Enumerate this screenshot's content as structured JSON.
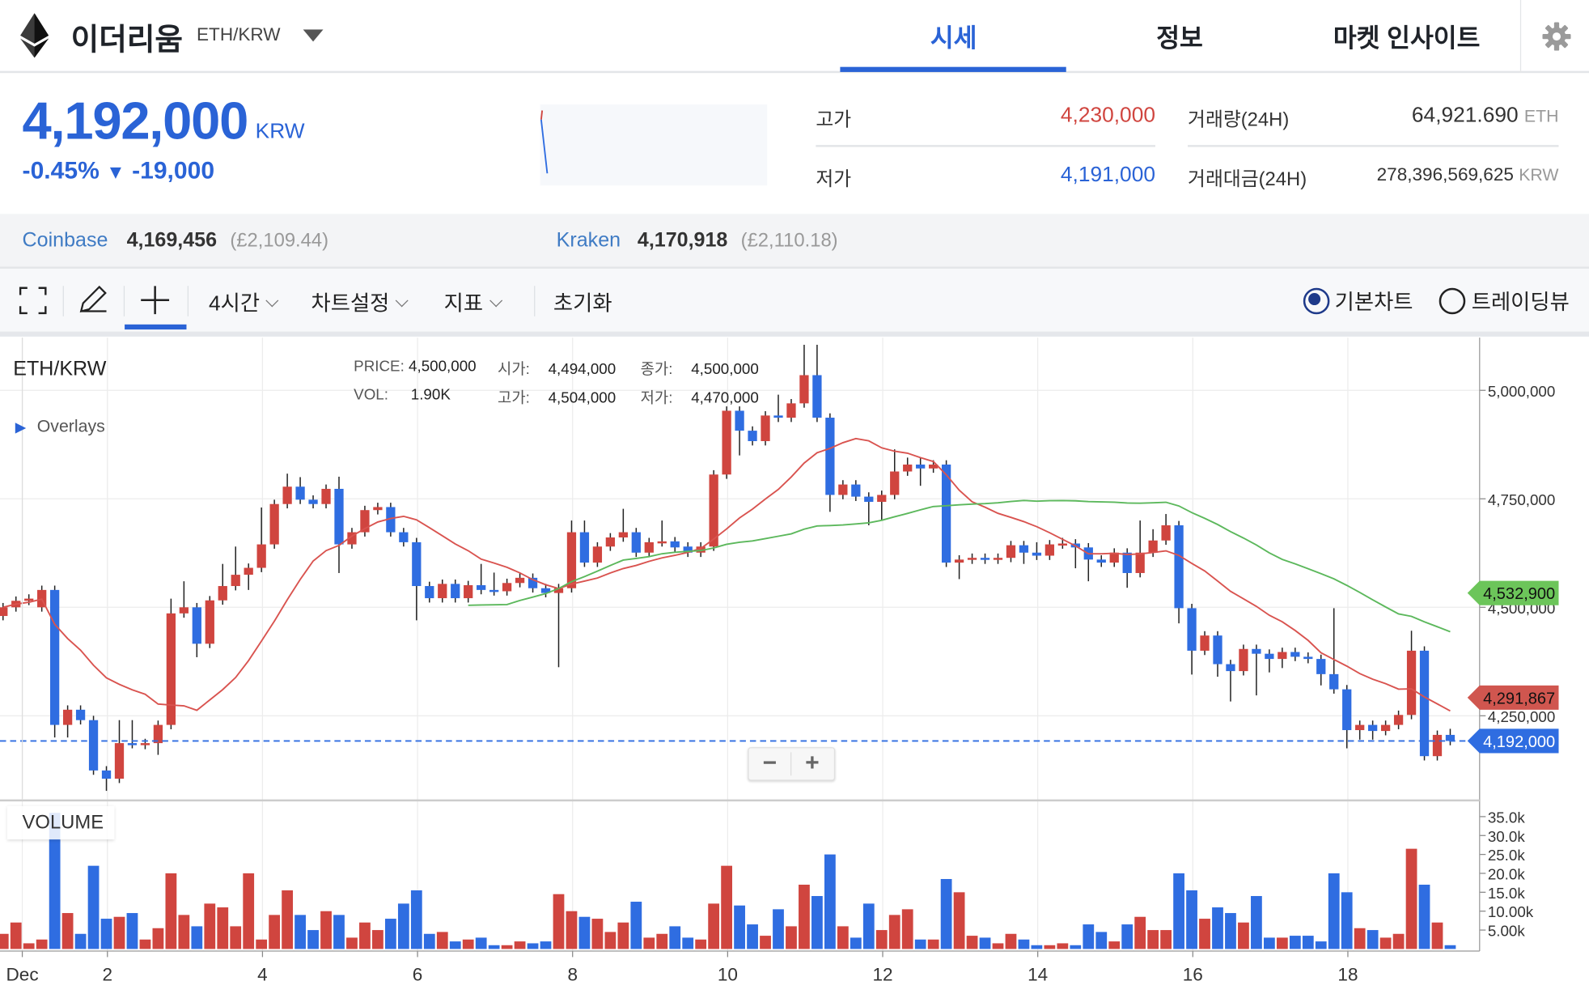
{
  "header": {
    "coin_name": "이더리움",
    "pair": "ETH/KRW",
    "tabs": [
      {
        "label": "시세",
        "active": true
      },
      {
        "label": "정보",
        "active": false
      },
      {
        "label": "마켓 인사이트",
        "active": false
      }
    ],
    "icons": {
      "logo": "ethereum-logo",
      "dropdown": "caret-down-icon",
      "settings": "gear-icon"
    }
  },
  "ticker": {
    "price": "4,192,000",
    "currency": "KRW",
    "change_pct": "-0.45%",
    "change_arrow": "▼",
    "change_abs": "-19,000",
    "high_label": "고가",
    "high_value": "4,230,000",
    "low_label": "저가",
    "low_value": "4,191,000",
    "volume_label": "거래량(24H)",
    "volume_value": "64,921.690",
    "volume_unit": "ETH",
    "turnover_label": "거래대금(24H)",
    "turnover_value": "278,396,569,625",
    "turnover_unit": "KRW"
  },
  "exchanges": [
    {
      "name": "Coinbase",
      "price": "4,169,456",
      "usd": "(£2,109.44)"
    },
    {
      "name": "Kraken",
      "price": "4,170,918",
      "usd": "(£2,110.18)"
    }
  ],
  "toolbar": {
    "interval": "4시간",
    "chart_settings": "차트설정",
    "indicators": "지표",
    "reset": "초기화",
    "basic_chart": "기본차트",
    "tradingview": "트레이딩뷰",
    "selected_chart": "기본차트",
    "icons": [
      "fullscreen-icon",
      "pencil-icon",
      "crosshair-icon"
    ]
  },
  "colors": {
    "accent": "#2a63d6",
    "up": "#d0453f",
    "down": "#2f6de1",
    "ma_short": "#d9534f",
    "ma_long": "#5cb85c"
  },
  "chart_data": {
    "type": "candlestick",
    "title": "ETH/KRW",
    "overlays_label": "Overlays",
    "volume_label": "VOLUME",
    "legend": {
      "price_label": "PRICE:",
      "price": "4,500,000",
      "open_label": "시가:",
      "open": "4,494,000",
      "close_label": "종가:",
      "close": "4,500,000",
      "vol_label": "VOL:",
      "vol": "1.90K",
      "high_label": "고가:",
      "high": "4,504,000",
      "low_label": "저가:",
      "low": "4,470,000"
    },
    "interval": "4시간",
    "ylim": [
      4050000,
      5130000
    ],
    "y_ticks": [
      {
        "value": 5000000,
        "label": "5,000,000"
      },
      {
        "value": 4750000,
        "label": "4,750,000"
      },
      {
        "value": 4500000,
        "label": "4,500,000"
      },
      {
        "value": 4250000,
        "label": "4,250,000"
      }
    ],
    "volume_ticks": [
      {
        "value": 35000,
        "label": "35.0k"
      },
      {
        "value": 30000,
        "label": "30.0k"
      },
      {
        "value": 25000,
        "label": "25.0k"
      },
      {
        "value": 20000,
        "label": "20.0k"
      },
      {
        "value": 15000,
        "label": "15.0k"
      },
      {
        "value": 10000,
        "label": "10.00k"
      },
      {
        "value": 5000,
        "label": "5.00k"
      }
    ],
    "x_ticks": [
      {
        "day": 1,
        "label": "Dec"
      },
      {
        "day": 2,
        "label": "2"
      },
      {
        "day": 4,
        "label": "4"
      },
      {
        "day": 6,
        "label": "6"
      },
      {
        "day": 8,
        "label": "8"
      },
      {
        "day": 10,
        "label": "10"
      },
      {
        "day": 12,
        "label": "12"
      },
      {
        "day": 14,
        "label": "14"
      },
      {
        "day": 16,
        "label": "16"
      },
      {
        "day": 18,
        "label": "18"
      }
    ],
    "grid": true,
    "ma_short_last": {
      "value": 4291867,
      "label": "4,291,867"
    },
    "ma_long_last": {
      "value": 4532900,
      "label": "4,532,900"
    },
    "last_price": {
      "value": 4192000,
      "label": "4,192,000"
    },
    "candles_ohlc": [
      [
        4480000,
        4510000,
        4470000,
        4500000
      ],
      [
        4500000,
        4525000,
        4490000,
        4515000
      ],
      [
        4515000,
        4530000,
        4505000,
        4520000
      ],
      [
        4500000,
        4550000,
        4490000,
        4540000
      ],
      [
        4540000,
        4550000,
        4200000,
        4229000
      ],
      [
        4229000,
        4274000,
        4200000,
        4264000
      ],
      [
        4264000,
        4274000,
        4230000,
        4240000
      ],
      [
        4240000,
        4250000,
        4114000,
        4124000
      ],
      [
        4124000,
        4134000,
        4077000,
        4105000
      ],
      [
        4105000,
        4240000,
        4095000,
        4187000
      ],
      [
        4187000,
        4240000,
        4175000,
        4185000
      ],
      [
        4183000,
        4197000,
        4173000,
        4187000
      ],
      [
        4187000,
        4239000,
        4160000,
        4229000
      ],
      [
        4229000,
        4520000,
        4219000,
        4486000
      ],
      [
        4486000,
        4560000,
        4476000,
        4500000
      ],
      [
        4500000,
        4510000,
        4385000,
        4416000
      ],
      [
        4416000,
        4526000,
        4406000,
        4516000
      ],
      [
        4516000,
        4600000,
        4506000,
        4549000
      ],
      [
        4549000,
        4640000,
        4539000,
        4575000
      ],
      [
        4575000,
        4601000,
        4540000,
        4591000
      ],
      [
        4591000,
        4730000,
        4581000,
        4645000
      ],
      [
        4645000,
        4748000,
        4635000,
        4738000
      ],
      [
        4738000,
        4808000,
        4728000,
        4778000
      ],
      [
        4778000,
        4800000,
        4738000,
        4748000
      ],
      [
        4748000,
        4758000,
        4728000,
        4738000
      ],
      [
        4738000,
        4783000,
        4728000,
        4773000
      ],
      [
        4773000,
        4801000,
        4579000,
        4645000
      ],
      [
        4645000,
        4683000,
        4635000,
        4673000
      ],
      [
        4673000,
        4734000,
        4663000,
        4724000
      ],
      [
        4724000,
        4741000,
        4714000,
        4731000
      ],
      [
        4731000,
        4741000,
        4663000,
        4673000
      ],
      [
        4673000,
        4683000,
        4640000,
        4650000
      ],
      [
        4650000,
        4660000,
        4470000,
        4549000
      ],
      [
        4549000,
        4559000,
        4511000,
        4521000
      ],
      [
        4521000,
        4564000,
        4511000,
        4554000
      ],
      [
        4554000,
        4564000,
        4511000,
        4521000
      ],
      [
        4521000,
        4561000,
        4511000,
        4551000
      ],
      [
        4551000,
        4600000,
        4530000,
        4540000
      ],
      [
        4540000,
        4580000,
        4527000,
        4537000
      ],
      [
        4537000,
        4566000,
        4527000,
        4556000
      ],
      [
        4556000,
        4578000,
        4546000,
        4568000
      ],
      [
        4568000,
        4578000,
        4534000,
        4544000
      ],
      [
        4544000,
        4554000,
        4523000,
        4533000
      ],
      [
        4533000,
        4554000,
        4362000,
        4544000
      ],
      [
        4544000,
        4700000,
        4534000,
        4673000
      ],
      [
        4673000,
        4700000,
        4593000,
        4603000
      ],
      [
        4603000,
        4650000,
        4593000,
        4640000
      ],
      [
        4640000,
        4671000,
        4630000,
        4661000
      ],
      [
        4661000,
        4727000,
        4651000,
        4673000
      ],
      [
        4673000,
        4683000,
        4616000,
        4626000
      ],
      [
        4626000,
        4660000,
        4616000,
        4650000
      ],
      [
        4650000,
        4700000,
        4640000,
        4652000
      ],
      [
        4652000,
        4662000,
        4628000,
        4638000
      ],
      [
        4640000,
        4650000,
        4616000,
        4626000
      ],
      [
        4626000,
        4650000,
        4616000,
        4640000
      ],
      [
        4640000,
        4816000,
        4630000,
        4806000
      ],
      [
        4806000,
        4963000,
        4796000,
        4953000
      ],
      [
        4953000,
        4963000,
        4850000,
        4907000
      ],
      [
        4907000,
        4917000,
        4873000,
        4883000
      ],
      [
        4883000,
        4952000,
        4873000,
        4942000
      ],
      [
        4942000,
        4990000,
        4927000,
        4937000
      ],
      [
        4937000,
        4980000,
        4927000,
        4970000
      ],
      [
        4970000,
        5105000,
        4960000,
        5035000
      ],
      [
        5035000,
        5105000,
        4927000,
        4937000
      ],
      [
        4937000,
        4947000,
        4720000,
        4759000
      ],
      [
        4759000,
        4793000,
        4749000,
        4783000
      ],
      [
        4783000,
        4793000,
        4745000,
        4755000
      ],
      [
        4755000,
        4765000,
        4689000,
        4743000
      ],
      [
        4743000,
        4769000,
        4700000,
        4759000
      ],
      [
        4759000,
        4864000,
        4749000,
        4813000
      ],
      [
        4813000,
        4845000,
        4803000,
        4829000
      ],
      [
        4829000,
        4845000,
        4780000,
        4820000
      ],
      [
        4820000,
        4839000,
        4810000,
        4829000
      ],
      [
        4829000,
        4839000,
        4593000,
        4603000
      ],
      [
        4603000,
        4620000,
        4565000,
        4610000
      ],
      [
        4610000,
        4624000,
        4600000,
        4614000
      ],
      [
        4614000,
        4624000,
        4600000,
        4610000
      ],
      [
        4610000,
        4624000,
        4600000,
        4614000
      ],
      [
        4614000,
        4653000,
        4604000,
        4643000
      ],
      [
        4643000,
        4653000,
        4600000,
        4626000
      ],
      [
        4626000,
        4650000,
        4609000,
        4619000
      ],
      [
        4619000,
        4655000,
        4609000,
        4645000
      ],
      [
        4645000,
        4660000,
        4635000,
        4647000
      ],
      [
        4647000,
        4657000,
        4590000,
        4638000
      ],
      [
        4638000,
        4648000,
        4560000,
        4610000
      ],
      [
        4610000,
        4620000,
        4593000,
        4603000
      ],
      [
        4603000,
        4636000,
        4593000,
        4626000
      ],
      [
        4626000,
        4636000,
        4545000,
        4579000
      ],
      [
        4579000,
        4700000,
        4569000,
        4626000
      ],
      [
        4626000,
        4680000,
        4616000,
        4654000
      ],
      [
        4654000,
        4715000,
        4644000,
        4689000
      ],
      [
        4689000,
        4699000,
        4463000,
        4498000
      ],
      [
        4498000,
        4508000,
        4345000,
        4400000
      ],
      [
        4400000,
        4445000,
        4390000,
        4435000
      ],
      [
        4435000,
        4445000,
        4340000,
        4369000
      ],
      [
        4369000,
        4379000,
        4283000,
        4353000
      ],
      [
        4353000,
        4414000,
        4343000,
        4404000
      ],
      [
        4404000,
        4414000,
        4297000,
        4393000
      ],
      [
        4393000,
        4403000,
        4350000,
        4381000
      ],
      [
        4381000,
        4407000,
        4360000,
        4397000
      ],
      [
        4397000,
        4407000,
        4376000,
        4386000
      ],
      [
        4386000,
        4396000,
        4371000,
        4381000
      ],
      [
        4381000,
        4391000,
        4320000,
        4346000
      ],
      [
        4346000,
        4498000,
        4301000,
        4311000
      ],
      [
        4311000,
        4321000,
        4175000,
        4217000
      ],
      [
        4217000,
        4239000,
        4195000,
        4229000
      ],
      [
        4229000,
        4239000,
        4195000,
        4215000
      ],
      [
        4215000,
        4239000,
        4205000,
        4229000
      ],
      [
        4229000,
        4262000,
        4219000,
        4252000
      ],
      [
        4252000,
        4446000,
        4242000,
        4400000
      ],
      [
        4400000,
        4410000,
        4147000,
        4157000
      ],
      [
        4157000,
        4216000,
        4147000,
        4206000
      ],
      [
        4206000,
        4220000,
        4182000,
        4192000
      ]
    ],
    "volumes": [
      4000,
      7000,
      1500,
      2500,
      36000,
      9500,
      4000,
      22000,
      8000,
      8500,
      9500,
      2500,
      5500,
      20000,
      9000,
      6000,
      12000,
      11000,
      6000,
      20000,
      2500,
      9000,
      15500,
      9000,
      5000,
      10000,
      9000,
      3000,
      7000,
      5000,
      8000,
      12000,
      15500,
      4000,
      4500,
      2000,
      2500,
      3000,
      1000,
      1000,
      2000,
      1500,
      2000,
      14500,
      10000,
      8500,
      8000,
      4500,
      7000,
      12500,
      3000,
      4000,
      6000,
      3000,
      2500,
      12000,
      22000,
      11500,
      6500,
      3500,
      10500,
      6000,
      17000,
      14000,
      25000,
      6000,
      3000,
      12000,
      5000,
      9000,
      10500,
      2500,
      2500,
      18500,
      15000,
      3500,
      3000,
      1500,
      4000,
      2500,
      1000,
      1000,
      1500,
      1000,
      6500,
      4500,
      2000,
      6500,
      8500,
      5000,
      5000,
      20000,
      15500,
      8000,
      11000,
      9500,
      7000,
      14000,
      3000,
      3000,
      3500,
      3500,
      2000,
      20000,
      15000,
      5500,
      5000,
      3000,
      4000,
      26500,
      17000,
      7000,
      1000
    ],
    "ma_short_window": 12,
    "ma_long_window": 36
  },
  "zoom_controls": {
    "minus": "−",
    "plus": "+"
  }
}
